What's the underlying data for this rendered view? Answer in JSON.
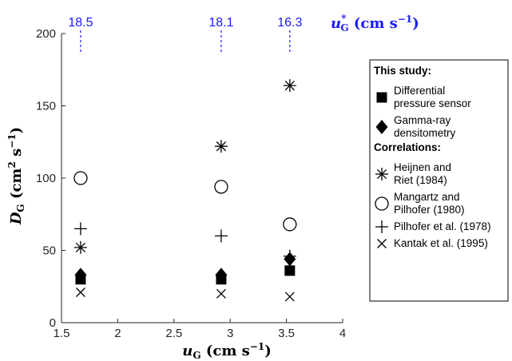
{
  "chart_data": {
    "type": "scatter",
    "xlim": [
      1.5,
      4
    ],
    "ylim": [
      0,
      200
    ],
    "x_ticks": [
      "1.5",
      "2",
      "2.5",
      "3",
      "3.5",
      "4"
    ],
    "y_ticks": [
      "0",
      "50",
      "100",
      "150",
      "200"
    ],
    "xlabel_main": "u",
    "xlabel_sub": "G",
    "xlabel_units": " (cm s",
    "xlabel_exp": "−1",
    "xlabel_close": ")",
    "ylabel_main": "D",
    "ylabel_sub": "G",
    "ylabel_units": " (cm",
    "ylabel_exp1": "2",
    "ylabel_mid": " s",
    "ylabel_exp2": "−1",
    "ylabel_close": ")",
    "top_axis": {
      "label_main": "u",
      "label_sup": "*",
      "label_sub": "G",
      "label_units": " (cm s",
      "label_exp": "−1",
      "label_close": ")",
      "ticks": [
        {
          "x": 1.67,
          "label": "18.5"
        },
        {
          "x": 2.92,
          "label": "18.1"
        },
        {
          "x": 3.53,
          "label": "16.3"
        }
      ],
      "color": "#1a1aff"
    },
    "grid": false,
    "legend_position": "right",
    "legend_groups": [
      {
        "heading": "This study:",
        "items": [
          {
            "marker": "square",
            "lines": [
              "Differential",
              "pressure sensor"
            ]
          },
          {
            "marker": "diamond",
            "lines": [
              "Gamma-ray",
              "densitometry"
            ]
          }
        ]
      },
      {
        "heading": "Correlations:",
        "items": [
          {
            "marker": "asterisk",
            "lines": [
              "Heijnen and",
              "Riet (1984)"
            ]
          },
          {
            "marker": "circle",
            "lines": [
              "Mangartz and",
              "Pilhofer (1980)"
            ]
          },
          {
            "marker": "plus",
            "lines": [
              "Pilhofer et al. (1978)"
            ]
          },
          {
            "marker": "cross",
            "lines": [
              "Kantak et al. (1995)"
            ]
          }
        ]
      }
    ],
    "series": [
      {
        "marker": "square",
        "x": [
          1.67,
          2.92,
          3.53
        ],
        "y": [
          30,
          30,
          36
        ]
      },
      {
        "marker": "diamond",
        "x": [
          1.67,
          2.92,
          3.53
        ],
        "y": [
          33,
          33,
          44
        ]
      },
      {
        "marker": "asterisk",
        "x": [
          1.67,
          2.92,
          3.53
        ],
        "y": [
          52,
          122,
          164
        ]
      },
      {
        "marker": "circle",
        "x": [
          1.67,
          2.92,
          3.53
        ],
        "y": [
          100,
          94,
          68
        ]
      },
      {
        "marker": "plus",
        "x": [
          1.67,
          2.92,
          3.53
        ],
        "y": [
          65,
          60,
          46
        ]
      },
      {
        "marker": "cross",
        "x": [
          1.67,
          2.92,
          3.53
        ],
        "y": [
          21,
          20,
          18
        ]
      }
    ]
  }
}
